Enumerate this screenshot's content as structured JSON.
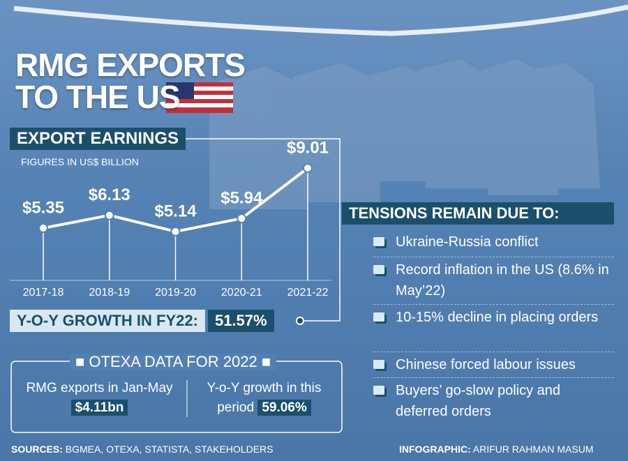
{
  "title": {
    "line1": "RMG EXPORTS",
    "line2": "TO THE US"
  },
  "chart_data": {
    "type": "line",
    "title": "EXPORT EARNINGS",
    "subtitle": "FIGURES IN US$ BILLION",
    "categories": [
      "2017-18",
      "2018-19",
      "2019-20",
      "2020-21",
      "2021-22"
    ],
    "values": [
      5.35,
      6.13,
      5.14,
      5.94,
      9.01
    ],
    "value_labels": [
      "$5.35",
      "$6.13",
      "$5.14",
      "$5.94",
      "$9.01"
    ],
    "color": "#ffffff"
  },
  "growth": {
    "label": "Y-O-Y GROWTH IN FY22:",
    "value": "51.57%"
  },
  "otexa": {
    "title": "OTEXA DATA FOR 2022",
    "left": {
      "text": "RMG exports in Jan-May",
      "value": "$4.11bn"
    },
    "right": {
      "text": "Y-o-Y growth in this period",
      "value": "59.06%"
    }
  },
  "tensions": {
    "title": "TENSIONS REMAIN DUE TO:",
    "items": [
      "Ukraine-Russia conflict",
      "Record inflation in the US (8.6% in May’22)",
      "10-15% decline in placing orders",
      "Chinese forced labour issues",
      "Buyers’ go-slow policy and deferred orders"
    ]
  },
  "footer": {
    "sources_label": "SOURCES:",
    "sources": "BGMEA, OTEXA, STATISTA, STAKEHOLDERS",
    "credit_label": "INFOGRAPHIC:",
    "credit": "ARIFUR RAHMAN MASUM"
  }
}
